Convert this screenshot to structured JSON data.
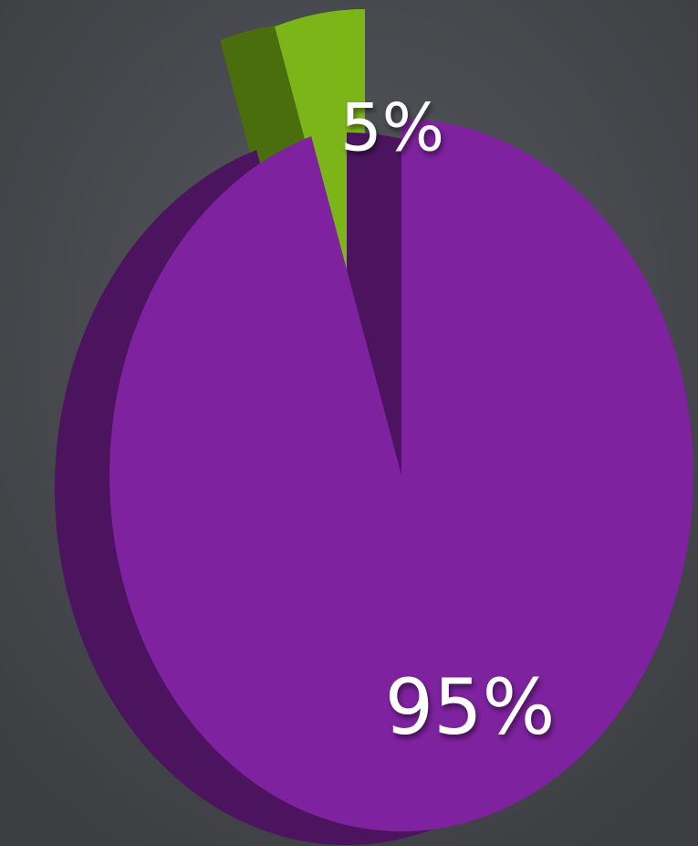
{
  "chart_data": {
    "type": "pie",
    "values": [
      5,
      95
    ],
    "value_labels": [
      "5%",
      "95%"
    ],
    "colors": [
      "#7cb518",
      "#7e229f"
    ]
  }
}
